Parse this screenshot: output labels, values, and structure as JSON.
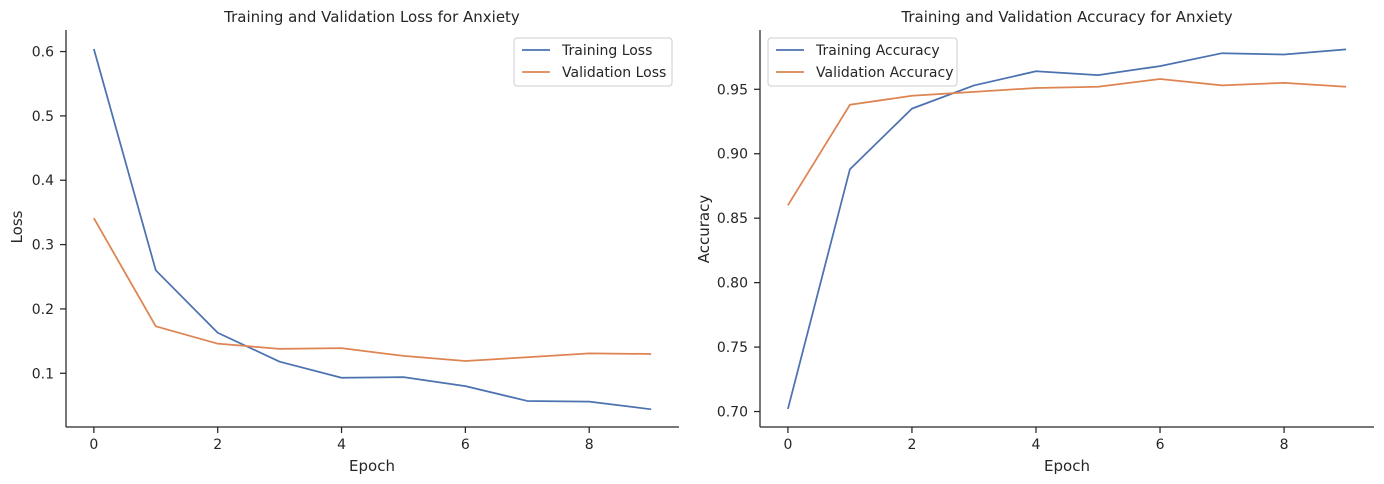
{
  "chart_data": [
    {
      "type": "line",
      "title": "Training and Validation Loss for Anxiety",
      "xlabel": "Epoch",
      "ylabel": "Loss",
      "xlim": [
        -0.45,
        9.45
      ],
      "ylim": [
        0.0165,
        0.6335
      ],
      "xticks": [
        0,
        2,
        4,
        6,
        8
      ],
      "yticks": [
        0.1,
        0.2,
        0.3,
        0.4,
        0.5,
        0.6
      ],
      "ytick_decimals": 1,
      "x": [
        0,
        1,
        2,
        3,
        4,
        5,
        6,
        7,
        8,
        9
      ],
      "legend_position": "upper right",
      "grid": false,
      "series": [
        {
          "name": "Training Loss",
          "color": "#4c72b0",
          "values": [
            0.604,
            0.26,
            0.163,
            0.118,
            0.093,
            0.094,
            0.08,
            0.057,
            0.056,
            0.044
          ]
        },
        {
          "name": "Validation Loss",
          "color": "#dd8452",
          "values": [
            0.341,
            0.173,
            0.146,
            0.138,
            0.139,
            0.127,
            0.119,
            0.125,
            0.131,
            0.13
          ]
        }
      ]
    },
    {
      "type": "line",
      "title": "Training and Validation Accuracy for Anxiety",
      "xlabel": "Epoch",
      "ylabel": "Accuracy",
      "xlim": [
        -0.45,
        9.45
      ],
      "ylim": [
        0.688,
        0.996
      ],
      "xticks": [
        0,
        2,
        4,
        6,
        8
      ],
      "yticks": [
        0.7,
        0.75,
        0.8,
        0.85,
        0.9,
        0.95
      ],
      "ytick_decimals": 2,
      "x": [
        0,
        1,
        2,
        3,
        4,
        5,
        6,
        7,
        8,
        9
      ],
      "legend_position": "upper left",
      "grid": false,
      "series": [
        {
          "name": "Training Accuracy",
          "color": "#4c72b0",
          "values": [
            0.702,
            0.888,
            0.935,
            0.953,
            0.964,
            0.961,
            0.968,
            0.978,
            0.977,
            0.981
          ]
        },
        {
          "name": "Validation Accuracy",
          "color": "#dd8452",
          "values": [
            0.86,
            0.938,
            0.945,
            0.948,
            0.951,
            0.952,
            0.958,
            0.953,
            0.955,
            0.952
          ]
        }
      ]
    }
  ]
}
